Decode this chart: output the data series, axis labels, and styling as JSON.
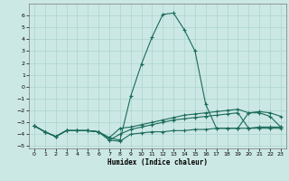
{
  "xlabel": "Humidex (Indice chaleur)",
  "bg_color": "#cce8e4",
  "grid_color": "#aad4cc",
  "line_color": "#1a6b5a",
  "xlim": [
    -0.5,
    23.5
  ],
  "ylim": [
    -5.2,
    7.0
  ],
  "xticks": [
    0,
    1,
    2,
    3,
    4,
    5,
    6,
    7,
    8,
    9,
    10,
    11,
    12,
    13,
    14,
    15,
    16,
    17,
    18,
    19,
    20,
    21,
    22,
    23
  ],
  "yticks": [
    -5,
    -4,
    -3,
    -2,
    -1,
    0,
    1,
    2,
    3,
    4,
    5,
    6
  ],
  "series": [
    {
      "x": [
        0,
        1,
        2,
        3,
        4,
        5,
        6,
        7,
        8,
        9,
        10,
        11,
        12,
        13,
        14,
        15,
        16,
        17,
        18,
        19,
        20,
        21,
        22,
        23
      ],
      "y": [
        -3.3,
        -3.8,
        -4.2,
        -3.7,
        -3.7,
        -3.7,
        -3.8,
        -4.3,
        -4.5,
        -0.8,
        1.9,
        4.2,
        6.1,
        6.2,
        4.8,
        3.0,
        -1.5,
        -3.5,
        -3.5,
        -3.5,
        -2.2,
        -2.2,
        -2.5,
        -3.4
      ],
      "marker": true
    },
    {
      "x": [
        0,
        1,
        2,
        3,
        4,
        5,
        6,
        7,
        8,
        9,
        10,
        11,
        12,
        13,
        14,
        15,
        16,
        17,
        18,
        19,
        20,
        21,
        22,
        23
      ],
      "y": [
        -3.3,
        -3.8,
        -4.2,
        -3.7,
        -3.7,
        -3.7,
        -3.8,
        -4.3,
        -3.5,
        -3.4,
        -3.2,
        -3.0,
        -2.8,
        -2.6,
        -2.4,
        -2.3,
        -2.2,
        -2.1,
        -2.0,
        -1.9,
        -2.2,
        -2.1,
        -2.2,
        -2.5
      ],
      "marker": true
    },
    {
      "x": [
        0,
        1,
        2,
        3,
        4,
        5,
        6,
        7,
        8,
        9,
        10,
        11,
        12,
        13,
        14,
        15,
        16,
        17,
        18,
        19,
        20,
        21,
        22,
        23
      ],
      "y": [
        -3.3,
        -3.8,
        -4.2,
        -3.7,
        -3.7,
        -3.7,
        -3.8,
        -4.5,
        -4.0,
        -3.6,
        -3.4,
        -3.2,
        -3.0,
        -2.8,
        -2.7,
        -2.6,
        -2.5,
        -2.4,
        -2.3,
        -2.2,
        -3.5,
        -3.4,
        -3.4,
        -3.4
      ],
      "marker": true
    },
    {
      "x": [
        0,
        1,
        2,
        3,
        4,
        5,
        6,
        7,
        8,
        9,
        10,
        11,
        12,
        13,
        14,
        15,
        16,
        17,
        18,
        19,
        20,
        21,
        22,
        23
      ],
      "y": [
        -3.3,
        -3.8,
        -4.2,
        -3.7,
        -3.7,
        -3.7,
        -3.8,
        -4.5,
        -4.6,
        -4.0,
        -3.9,
        -3.8,
        -3.8,
        -3.7,
        -3.7,
        -3.6,
        -3.6,
        -3.5,
        -3.5,
        -3.5,
        -3.5,
        -3.5,
        -3.5,
        -3.5
      ],
      "marker": true
    }
  ]
}
